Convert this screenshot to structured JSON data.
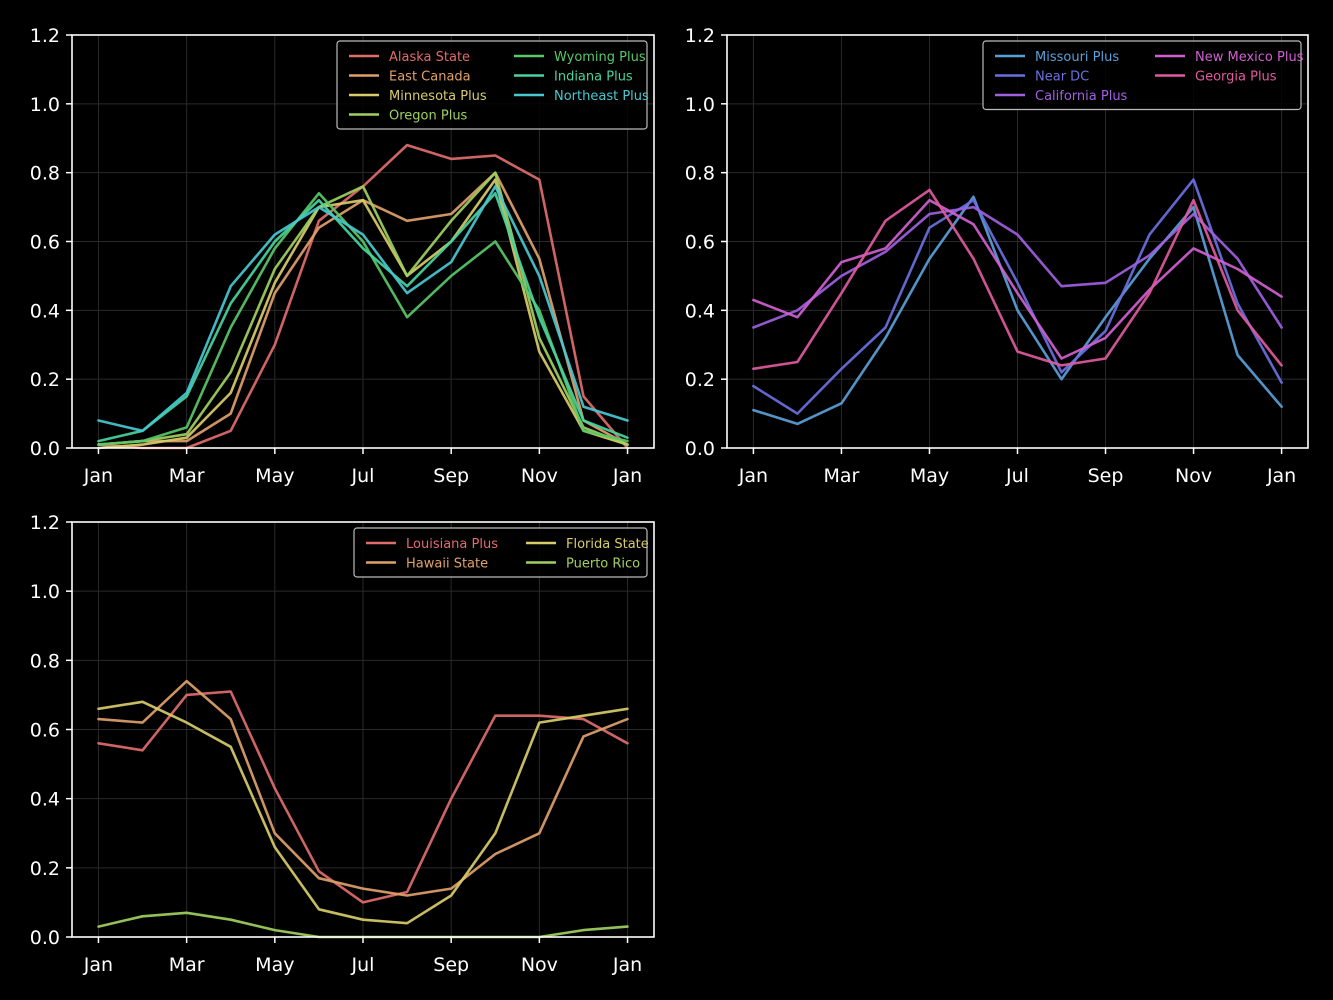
{
  "chart_data": [
    {
      "type": "line",
      "xticks": [
        "Jan",
        "Mar",
        "May",
        "Jul",
        "Sep",
        "Nov",
        "Jan"
      ],
      "yticks": [
        "0.0",
        "0.2",
        "0.4",
        "0.6",
        "0.8",
        "1.0",
        "1.2"
      ],
      "ylim": [
        0,
        1.2
      ],
      "xlim": [
        -0.05,
        1.05
      ],
      "grid": true,
      "legend": "top-right",
      "legend_columns": 2,
      "x": [
        0,
        0.0833,
        0.1667,
        0.25,
        0.3333,
        0.4167,
        0.5,
        0.5833,
        0.6667,
        0.75,
        0.8333,
        0.9167,
        1.0
      ],
      "series": [
        {
          "name": "Alaska State",
          "color": "#e06c6c",
          "values": [
            0.01,
            0.0,
            0.0,
            0.05,
            0.3,
            0.66,
            0.76,
            0.88,
            0.84,
            0.85,
            0.78,
            0.15,
            0.0
          ]
        },
        {
          "name": "East Canada",
          "color": "#e0a06a",
          "values": [
            0.01,
            0.02,
            0.02,
            0.1,
            0.45,
            0.64,
            0.72,
            0.66,
            0.68,
            0.8,
            0.55,
            0.08,
            0.01
          ]
        },
        {
          "name": "Minnesota Plus",
          "color": "#d8cc6a",
          "values": [
            0.0,
            0.01,
            0.03,
            0.16,
            0.48,
            0.7,
            0.72,
            0.5,
            0.6,
            0.78,
            0.28,
            0.05,
            0.01
          ]
        },
        {
          "name": "Oregon Plus",
          "color": "#a0d060",
          "values": [
            0.01,
            0.02,
            0.04,
            0.22,
            0.52,
            0.7,
            0.76,
            0.5,
            0.66,
            0.8,
            0.32,
            0.06,
            0.01
          ]
        },
        {
          "name": "Wyoming Plus",
          "color": "#58c868",
          "values": [
            0.01,
            0.02,
            0.06,
            0.35,
            0.58,
            0.74,
            0.6,
            0.38,
            0.5,
            0.6,
            0.4,
            0.05,
            0.02
          ]
        },
        {
          "name": "Indiana Plus",
          "color": "#48d4a0",
          "values": [
            0.02,
            0.05,
            0.15,
            0.42,
            0.6,
            0.72,
            0.58,
            0.47,
            0.6,
            0.74,
            0.38,
            0.08,
            0.03
          ]
        },
        {
          "name": "Northeast Plus",
          "color": "#48c8d0",
          "values": [
            0.08,
            0.05,
            0.16,
            0.47,
            0.62,
            0.7,
            0.62,
            0.45,
            0.54,
            0.76,
            0.5,
            0.12,
            0.08
          ]
        }
      ]
    },
    {
      "type": "line",
      "xticks": [
        "Jan",
        "Mar",
        "May",
        "Jul",
        "Sep",
        "Nov",
        "Jan"
      ],
      "yticks": [
        "0.0",
        "0.2",
        "0.4",
        "0.6",
        "0.8",
        "1.0",
        "1.2"
      ],
      "ylim": [
        0,
        1.2
      ],
      "xlim": [
        -0.05,
        1.05
      ],
      "grid": true,
      "legend": "top-right",
      "legend_columns": 2,
      "x": [
        0,
        0.0833,
        0.1667,
        0.25,
        0.3333,
        0.4167,
        0.5,
        0.5833,
        0.6667,
        0.75,
        0.8333,
        0.9167,
        1.0
      ],
      "series": [
        {
          "name": "Missouri Plus",
          "color": "#5aa0d8",
          "values": [
            0.11,
            0.07,
            0.13,
            0.32,
            0.55,
            0.73,
            0.4,
            0.2,
            0.38,
            0.55,
            0.7,
            0.27,
            0.12
          ]
        },
        {
          "name": "Near DC",
          "color": "#6a70e0",
          "values": [
            0.18,
            0.1,
            0.23,
            0.35,
            0.64,
            0.72,
            0.48,
            0.22,
            0.34,
            0.62,
            0.78,
            0.42,
            0.19
          ]
        },
        {
          "name": "California Plus",
          "color": "#a060e0",
          "values": [
            0.35,
            0.4,
            0.5,
            0.57,
            0.68,
            0.7,
            0.62,
            0.47,
            0.48,
            0.56,
            0.68,
            0.55,
            0.35
          ]
        },
        {
          "name": "New Mexico Plus",
          "color": "#d060d0",
          "values": [
            0.43,
            0.38,
            0.54,
            0.58,
            0.72,
            0.65,
            0.45,
            0.26,
            0.32,
            0.46,
            0.58,
            0.52,
            0.44
          ]
        },
        {
          "name": "Georgia Plus",
          "color": "#e05aa0",
          "values": [
            0.23,
            0.25,
            0.45,
            0.66,
            0.75,
            0.55,
            0.28,
            0.24,
            0.26,
            0.45,
            0.72,
            0.4,
            0.24
          ]
        }
      ]
    },
    {
      "type": "line",
      "xticks": [
        "Jan",
        "Mar",
        "May",
        "Jul",
        "Sep",
        "Nov",
        "Jan"
      ],
      "yticks": [
        "0.0",
        "0.2",
        "0.4",
        "0.6",
        "0.8",
        "1.0",
        "1.2"
      ],
      "ylim": [
        0,
        1.2
      ],
      "xlim": [
        -0.05,
        1.05
      ],
      "grid": true,
      "legend": "top-right",
      "legend_columns": 2,
      "x": [
        0,
        0.0833,
        0.1667,
        0.25,
        0.3333,
        0.4167,
        0.5,
        0.5833,
        0.6667,
        0.75,
        0.8333,
        0.9167,
        1.0
      ],
      "series": [
        {
          "name": "Louisiana Plus",
          "color": "#e06c6c",
          "values": [
            0.56,
            0.54,
            0.7,
            0.71,
            0.43,
            0.19,
            0.1,
            0.13,
            0.4,
            0.64,
            0.64,
            0.63,
            0.56
          ]
        },
        {
          "name": "Hawaii State",
          "color": "#e0a06a",
          "values": [
            0.63,
            0.62,
            0.74,
            0.63,
            0.3,
            0.17,
            0.14,
            0.12,
            0.14,
            0.24,
            0.3,
            0.58,
            0.63
          ]
        },
        {
          "name": "Florida State",
          "color": "#d8cc6a",
          "values": [
            0.66,
            0.68,
            0.62,
            0.55,
            0.26,
            0.08,
            0.05,
            0.04,
            0.12,
            0.3,
            0.62,
            0.64,
            0.66
          ]
        },
        {
          "name": "Puerto Rico",
          "color": "#a0d060",
          "values": [
            0.03,
            0.06,
            0.07,
            0.05,
            0.02,
            0.0,
            0.0,
            0.0,
            0.0,
            0.0,
            0.0,
            0.02,
            0.03
          ]
        }
      ]
    }
  ]
}
